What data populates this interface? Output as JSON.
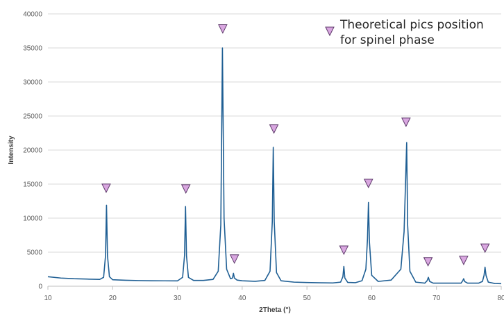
{
  "chart_data": {
    "type": "line",
    "title": "",
    "xlabel": "2Theta (°)",
    "ylabel": "Intensity",
    "xlim": [
      10,
      80
    ],
    "ylim": [
      0,
      40000
    ],
    "x_ticks": [
      10,
      20,
      30,
      40,
      50,
      60,
      70,
      80
    ],
    "y_ticks": [
      0,
      5000,
      10000,
      15000,
      20000,
      25000,
      30000,
      35000,
      40000
    ],
    "x_tick_labels": [
      "10",
      "20",
      "30",
      "40",
      "50",
      "60",
      "70",
      "80"
    ],
    "y_tick_labels": [
      "0",
      "5000",
      "10000",
      "15000",
      "20000",
      "25000",
      "30000",
      "35000",
      "40000"
    ],
    "grid": "horizontal",
    "legend_position": "top-right",
    "series": [
      {
        "color": "#1f5f94",
        "x": [
          10,
          12,
          14,
          16,
          18,
          18.6,
          18.9,
          19.05,
          19.2,
          19.5,
          20,
          22,
          24,
          26,
          28,
          30,
          30.8,
          31.1,
          31.25,
          31.4,
          31.7,
          32.5,
          34,
          35.5,
          36.3,
          36.7,
          36.95,
          37.2,
          37.6,
          38.2,
          38.5,
          38.65,
          38.8,
          39.2,
          40,
          42,
          43.5,
          44.3,
          44.65,
          44.8,
          44.95,
          45.3,
          46,
          48,
          50,
          52,
          54,
          55.2,
          55.55,
          55.7,
          55.85,
          56.3,
          57.5,
          58.5,
          59.1,
          59.35,
          59.5,
          59.65,
          60,
          61,
          63,
          64.5,
          65,
          65.25,
          65.4,
          65.55,
          65.9,
          66.8,
          68.2,
          68.55,
          68.75,
          68.95,
          69.5,
          72,
          73.8,
          74.05,
          74.2,
          74.35,
          74.8,
          76.5,
          77.1,
          77.35,
          77.5,
          77.65,
          78,
          79,
          80
        ],
        "y": [
          1400,
          1200,
          1100,
          1050,
          1000,
          1300,
          4500,
          11900,
          4500,
          1400,
          950,
          870,
          830,
          800,
          790,
          780,
          1300,
          4500,
          11700,
          4500,
          1300,
          850,
          850,
          1000,
          2200,
          9000,
          35000,
          10000,
          2500,
          1100,
          1200,
          1900,
          1200,
          900,
          800,
          720,
          850,
          2200,
          9500,
          20400,
          9500,
          2000,
          800,
          600,
          540,
          500,
          480,
          600,
          1400,
          2900,
          1200,
          550,
          520,
          800,
          2500,
          7000,
          12300,
          6500,
          1600,
          700,
          900,
          2500,
          8000,
          16000,
          21100,
          9000,
          2200,
          600,
          450,
          800,
          1300,
          700,
          450,
          450,
          450,
          800,
          1100,
          700,
          450,
          450,
          700,
          1600,
          2800,
          1600,
          600,
          400,
          380
        ]
      }
    ],
    "markers": {
      "symbol": "inverted-triangle",
      "color": "#d9a7e0",
      "x": [
        19,
        31.3,
        37,
        38.8,
        44.9,
        55.7,
        59.5,
        65.3,
        68.7,
        74.2,
        77.5
      ],
      "y": [
        14400,
        14300,
        37800,
        4000,
        23100,
        5300,
        15100,
        24100,
        3600,
        3800,
        5600
      ]
    },
    "legend": {
      "marker": "inverted-triangle",
      "text_line1": "Theoretical pics position",
      "text_line2": "for spinel phase"
    }
  },
  "colors": {
    "series_line": "#1f5f94",
    "marker_fill": "#d9a7e0",
    "marker_stroke": "#5e3a6b",
    "grid": "#d9d9d9",
    "axis": "#bfbfbf"
  }
}
